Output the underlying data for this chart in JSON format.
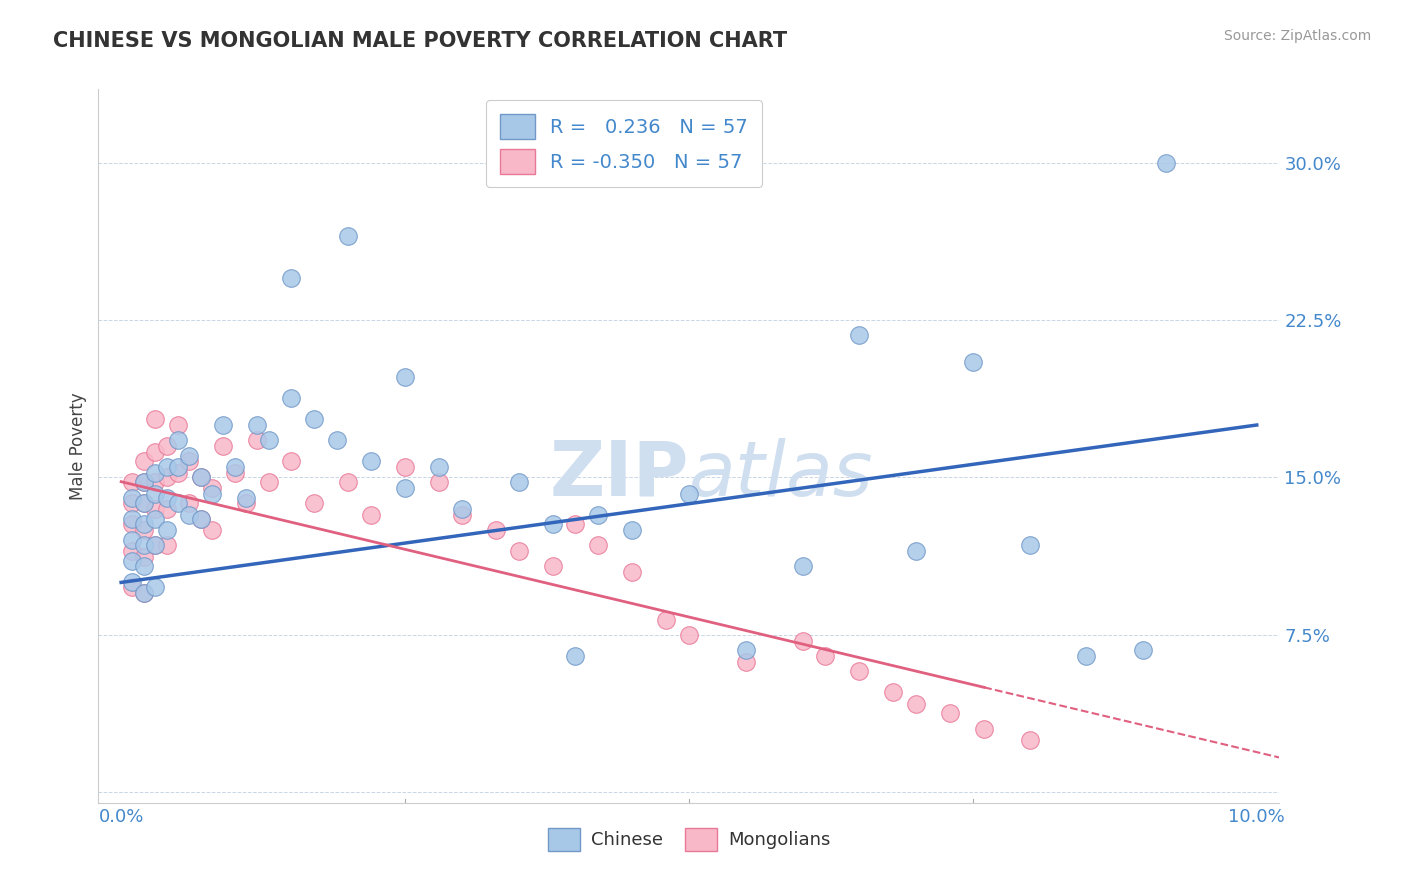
{
  "title": "CHINESE VS MONGOLIAN MALE POVERTY CORRELATION CHART",
  "source_text": "Source: ZipAtlas.com",
  "ylabel_text": "Male Poverty",
  "y_ticks": [
    0.0,
    0.075,
    0.15,
    0.225,
    0.3
  ],
  "y_tick_labels": [
    "",
    "7.5%",
    "15.0%",
    "22.5%",
    "30.0%"
  ],
  "xlim": [
    -0.002,
    0.102
  ],
  "ylim": [
    -0.005,
    0.335
  ],
  "R_chinese": "0.236",
  "N_chinese": "57",
  "R_mongolian": "-0.350",
  "N_mongolian": "57",
  "chinese_color": "#a8c8e8",
  "mongolian_color": "#f8b8c8",
  "chinese_edge_color": "#7098c8",
  "mongolian_edge_color": "#e87898",
  "blue_line_color": "#3366bb",
  "pink_line_color": "#e06080",
  "legend_text_color": "#4488cc",
  "watermark_color": "#d0dff0",
  "chinese_scatter_x": [
    0.001,
    0.001,
    0.001,
    0.001,
    0.001,
    0.002,
    0.002,
    0.002,
    0.002,
    0.002,
    0.002,
    0.003,
    0.003,
    0.003,
    0.003,
    0.003,
    0.004,
    0.004,
    0.004,
    0.005,
    0.005,
    0.005,
    0.006,
    0.006,
    0.007,
    0.007,
    0.008,
    0.009,
    0.01,
    0.011,
    0.012,
    0.013,
    0.015,
    0.017,
    0.019,
    0.022,
    0.025,
    0.028,
    0.03,
    0.035,
    0.038,
    0.042,
    0.045,
    0.05,
    0.055,
    0.06,
    0.065,
    0.07,
    0.075,
    0.08,
    0.085,
    0.09,
    0.092,
    0.015,
    0.02,
    0.025,
    0.04
  ],
  "chinese_scatter_y": [
    0.14,
    0.13,
    0.12,
    0.11,
    0.1,
    0.148,
    0.138,
    0.128,
    0.118,
    0.108,
    0.095,
    0.152,
    0.142,
    0.13,
    0.118,
    0.098,
    0.155,
    0.14,
    0.125,
    0.168,
    0.155,
    0.138,
    0.16,
    0.132,
    0.15,
    0.13,
    0.142,
    0.175,
    0.155,
    0.14,
    0.175,
    0.168,
    0.188,
    0.178,
    0.168,
    0.158,
    0.145,
    0.155,
    0.135,
    0.148,
    0.128,
    0.132,
    0.125,
    0.142,
    0.068,
    0.108,
    0.218,
    0.115,
    0.205,
    0.118,
    0.065,
    0.068,
    0.3,
    0.245,
    0.265,
    0.198,
    0.065
  ],
  "mongolian_scatter_x": [
    0.001,
    0.001,
    0.001,
    0.001,
    0.001,
    0.002,
    0.002,
    0.002,
    0.002,
    0.002,
    0.002,
    0.003,
    0.003,
    0.003,
    0.003,
    0.003,
    0.004,
    0.004,
    0.004,
    0.004,
    0.005,
    0.005,
    0.006,
    0.006,
    0.007,
    0.007,
    0.008,
    0.008,
    0.009,
    0.01,
    0.011,
    0.012,
    0.013,
    0.015,
    0.017,
    0.02,
    0.022,
    0.025,
    0.028,
    0.03,
    0.033,
    0.035,
    0.038,
    0.04,
    0.042,
    0.045,
    0.048,
    0.05,
    0.055,
    0.06,
    0.062,
    0.065,
    0.068,
    0.07,
    0.073,
    0.076,
    0.08
  ],
  "mongolian_scatter_y": [
    0.148,
    0.138,
    0.128,
    0.115,
    0.098,
    0.158,
    0.148,
    0.138,
    0.125,
    0.112,
    0.095,
    0.178,
    0.162,
    0.148,
    0.135,
    0.118,
    0.165,
    0.15,
    0.135,
    0.118,
    0.175,
    0.152,
    0.158,
    0.138,
    0.15,
    0.13,
    0.145,
    0.125,
    0.165,
    0.152,
    0.138,
    0.168,
    0.148,
    0.158,
    0.138,
    0.148,
    0.132,
    0.155,
    0.148,
    0.132,
    0.125,
    0.115,
    0.108,
    0.128,
    0.118,
    0.105,
    0.082,
    0.075,
    0.062,
    0.072,
    0.065,
    0.058,
    0.048,
    0.042,
    0.038,
    0.03,
    0.025
  ],
  "blue_line_x0": 0.0,
  "blue_line_y0": 0.1,
  "blue_line_x1": 0.1,
  "blue_line_y1": 0.175,
  "pink_line_solid_x0": 0.0,
  "pink_line_solid_y0": 0.148,
  "pink_line_solid_x1": 0.076,
  "pink_line_solid_y1": 0.05,
  "pink_line_dash_x0": 0.076,
  "pink_line_dash_y0": 0.05,
  "pink_line_dash_x1": 0.104,
  "pink_line_dash_y1": 0.014
}
